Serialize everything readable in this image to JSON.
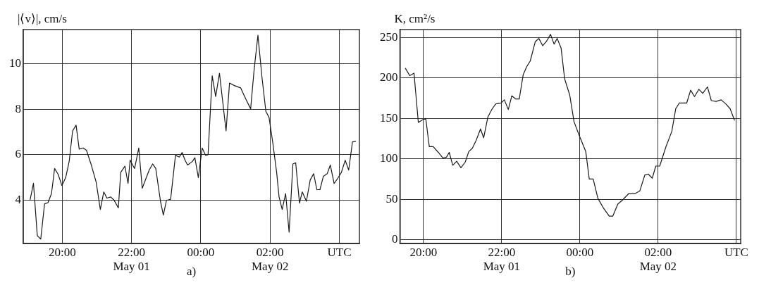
{
  "chart_data": [
    {
      "type": "line",
      "ylabel": "|⟨v⟩|, cm/s",
      "annotations": [
        "a)"
      ],
      "x": [
        19.07,
        19.17,
        19.28,
        19.38,
        19.49,
        19.59,
        19.69,
        19.78,
        19.88,
        19.99,
        20.1,
        20.2,
        20.3,
        20.4,
        20.49,
        20.6,
        20.7,
        20.84,
        20.98,
        21.1,
        21.2,
        21.29,
        21.4,
        21.5,
        21.62,
        21.69,
        21.81,
        21.9,
        21.96,
        22.05,
        22.09,
        22.21,
        22.31,
        22.51,
        22.61,
        22.7,
        22.84,
        22.92,
        23.01,
        23.13,
        23.27,
        23.38,
        23.46,
        23.55,
        23.62,
        23.76,
        23.83,
        23.93,
        24.04,
        24.14,
        24.21,
        24.33,
        24.43,
        24.54,
        24.73,
        24.83,
        24.97,
        25.15,
        25.3,
        25.44,
        25.54,
        25.65,
        25.77,
        25.88,
        25.97,
        26.08,
        26.19,
        26.26,
        26.35,
        26.45,
        26.55,
        26.66,
        26.74,
        26.85,
        26.93,
        27.05,
        27.16,
        27.26,
        27.35,
        27.44,
        27.54,
        27.65,
        27.74,
        27.85,
        27.96,
        28.06,
        28.17,
        28.27,
        28.38,
        28.47
      ],
      "series": [
        {
          "color": "#1a1a1a",
          "values": [
            4.0,
            4.75,
            2.45,
            2.3,
            3.85,
            3.9,
            4.3,
            5.4,
            5.15,
            4.65,
            5.0,
            5.7,
            7.05,
            7.3,
            6.25,
            6.3,
            6.2,
            5.55,
            4.8,
            3.6,
            4.37,
            4.1,
            4.15,
            4.0,
            3.67,
            5.23,
            5.5,
            4.74,
            5.77,
            5.5,
            5.4,
            6.3,
            4.53,
            5.33,
            5.6,
            5.4,
            3.93,
            3.35,
            4.0,
            4.05,
            5.98,
            5.9,
            6.1,
            5.75,
            5.55,
            5.71,
            5.87,
            5.0,
            6.3,
            5.98,
            6.0,
            9.47,
            8.56,
            9.58,
            7.05,
            9.15,
            9.04,
            8.94,
            8.45,
            8.02,
            9.74,
            11.25,
            9.36,
            7.9,
            7.65,
            6.52,
            5.23,
            4.15,
            3.6,
            4.3,
            2.6,
            5.6,
            5.65,
            3.88,
            4.37,
            3.96,
            4.9,
            5.17,
            4.47,
            4.47,
            5.06,
            5.17,
            5.55,
            4.74,
            4.98,
            5.23,
            5.76,
            5.33,
            6.57,
            6.6
          ]
        }
      ],
      "xlim": [
        18.875,
        28.58
      ],
      "xticks": [
        {
          "value": 20,
          "label": "20:00"
        },
        {
          "value": 22,
          "label": "22:00\nMay 01"
        },
        {
          "value": 24,
          "label": "00:00"
        },
        {
          "value": 26,
          "label": "02:00\nMay 02"
        },
        {
          "value": 28,
          "label": "UTC"
        }
      ],
      "ylim": [
        2.1,
        11.5
      ],
      "yticks": [
        4,
        6,
        8,
        10
      ],
      "grid": true,
      "line_style": "solid"
    },
    {
      "type": "line",
      "ylabel": "K, cm²/s",
      "annotations": [
        "b)"
      ],
      "x": [
        19.54,
        19.65,
        19.76,
        19.87,
        19.97,
        20.06,
        20.15,
        20.25,
        20.38,
        20.5,
        20.59,
        20.66,
        20.75,
        20.85,
        20.96,
        21.07,
        21.16,
        21.25,
        21.35,
        21.46,
        21.54,
        21.65,
        21.76,
        21.85,
        21.98,
        22.07,
        22.17,
        22.26,
        22.36,
        22.45,
        22.55,
        22.64,
        22.73,
        22.86,
        22.95,
        23.05,
        23.14,
        23.25,
        23.34,
        23.42,
        23.52,
        23.61,
        23.74,
        23.85,
        23.99,
        24.15,
        24.24,
        24.34,
        24.46,
        24.59,
        24.75,
        24.84,
        24.97,
        25.09,
        25.25,
        25.41,
        25.53,
        25.66,
        25.75,
        25.85,
        25.94,
        26.04,
        26.2,
        26.35,
        26.45,
        26.54,
        26.73,
        26.83,
        26.93,
        27.04,
        27.14,
        27.26,
        27.36,
        27.48,
        27.61,
        27.73,
        27.84,
        27.95
      ],
      "series": [
        {
          "color": "#1a1a1a",
          "values": [
            212,
            203,
            206,
            145,
            148,
            150,
            115,
            115,
            108,
            101,
            102,
            108,
            92,
            97,
            89,
            96,
            109,
            113,
            123,
            137,
            126,
            152,
            162,
            168,
            169,
            173,
            161,
            178,
            174,
            174,
            204,
            214,
            221,
            245,
            249,
            240,
            245,
            254,
            242,
            249,
            237,
            199,
            179,
            146,
            128,
            109,
            75,
            75,
            51,
            40,
            29,
            29,
            44,
            49,
            57,
            57,
            60,
            80,
            81,
            76,
            91,
            91,
            115,
            134,
            162,
            169,
            169,
            185,
            177,
            186,
            181,
            189,
            172,
            171,
            173,
            168,
            162,
            148
          ]
        }
      ],
      "xlim": [
        19.4,
        28.11
      ],
      "xticks": [
        {
          "value": 20,
          "label": "20:00"
        },
        {
          "value": 22,
          "label": "22:00\nMay 01"
        },
        {
          "value": 24,
          "label": "00:00"
        },
        {
          "value": 26,
          "label": "02:00\nMay 02"
        },
        {
          "value": 28,
          "label": "UTC"
        }
      ],
      "ylim": [
        -5,
        260
      ],
      "yticks": [
        0,
        50,
        100,
        150,
        200,
        250
      ],
      "grid": true,
      "line_style": "solid"
    }
  ]
}
